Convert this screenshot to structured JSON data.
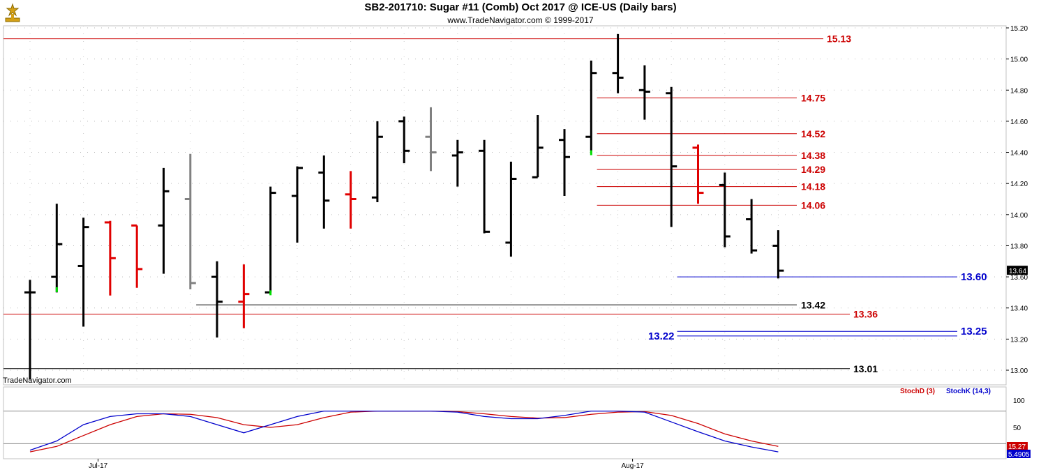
{
  "header": {
    "title": "SB2-201710:  Sugar #11 (Comb) Oct 2017 @ ICE-US  (Daily bars)",
    "subtitle": "www.TradeNavigator.com © 1999-2017"
  },
  "watermark": "TradeNavigator.com",
  "colors": {
    "up": "#000000",
    "down": "#e00000",
    "neutral": "#808080",
    "mark": "#00dd00",
    "level_red": "#cc0000",
    "level_black": "#000000",
    "level_blue": "#0000cc",
    "stochK": "#0000cc",
    "stochD": "#cc0000"
  },
  "chart_data": {
    "type": "ohlc",
    "price_axis": {
      "min": 12.95,
      "max": 15.25,
      "ticks": [
        "13.00",
        "13.20",
        "13.40",
        "13.60",
        "13.80",
        "14.00",
        "14.20",
        "14.40",
        "14.60",
        "14.80",
        "15.00",
        "15.20"
      ]
    },
    "last_price_label": "13.64",
    "date_labels": [
      {
        "index": 2,
        "label": "Jul-17"
      },
      {
        "index": 22,
        "label": "Aug-17"
      }
    ],
    "bars": [
      {
        "o": 13.5,
        "h": 13.58,
        "l": 12.94,
        "c": 13.5,
        "color": "up"
      },
      {
        "o": 13.6,
        "h": 14.07,
        "l": 13.5,
        "c": 13.81,
        "color": "up",
        "mark": 13.52
      },
      {
        "o": 13.67,
        "h": 13.98,
        "l": 13.28,
        "c": 13.92,
        "color": "up"
      },
      {
        "o": 13.95,
        "h": 13.96,
        "l": 13.48,
        "c": 13.72,
        "color": "down"
      },
      {
        "o": 13.93,
        "h": 13.93,
        "l": 13.53,
        "c": 13.65,
        "color": "down"
      },
      {
        "o": 13.93,
        "h": 14.3,
        "l": 13.62,
        "c": 14.15,
        "color": "up"
      },
      {
        "o": 14.1,
        "h": 14.39,
        "l": 13.52,
        "c": 13.56,
        "color": "neutral"
      },
      {
        "o": 13.6,
        "h": 13.7,
        "l": 13.21,
        "c": 13.44,
        "color": "up"
      },
      {
        "o": 13.44,
        "h": 13.68,
        "l": 13.27,
        "c": 13.49,
        "color": "down"
      },
      {
        "o": 13.5,
        "h": 14.18,
        "l": 13.5,
        "c": 14.14,
        "color": "up",
        "mark": 13.5
      },
      {
        "o": 14.12,
        "h": 14.31,
        "l": 13.82,
        "c": 14.3,
        "color": "up"
      },
      {
        "o": 14.27,
        "h": 14.38,
        "l": 13.91,
        "c": 14.09,
        "color": "up"
      },
      {
        "o": 14.13,
        "h": 14.28,
        "l": 13.91,
        "c": 14.1,
        "color": "down"
      },
      {
        "o": 14.11,
        "h": 14.6,
        "l": 14.08,
        "c": 14.5,
        "color": "up"
      },
      {
        "o": 14.6,
        "h": 14.63,
        "l": 14.33,
        "c": 14.41,
        "color": "up"
      },
      {
        "o": 14.5,
        "h": 14.69,
        "l": 14.28,
        "c": 14.4,
        "color": "neutral"
      },
      {
        "o": 14.38,
        "h": 14.48,
        "l": 14.18,
        "c": 14.4,
        "color": "up"
      },
      {
        "o": 14.41,
        "h": 14.48,
        "l": 13.88,
        "c": 13.89,
        "color": "up"
      },
      {
        "o": 13.82,
        "h": 14.34,
        "l": 13.73,
        "c": 14.23,
        "color": "up"
      },
      {
        "o": 14.24,
        "h": 14.64,
        "l": 14.24,
        "c": 14.43,
        "color": "up"
      },
      {
        "o": 14.48,
        "h": 14.55,
        "l": 14.12,
        "c": 14.37,
        "color": "up"
      },
      {
        "o": 14.5,
        "h": 14.99,
        "l": 14.41,
        "c": 14.91,
        "color": "up",
        "mark": 14.4
      },
      {
        "o": 14.91,
        "h": 15.16,
        "l": 14.78,
        "c": 14.88,
        "color": "up"
      },
      {
        "o": 14.8,
        "h": 14.96,
        "l": 14.61,
        "c": 14.79,
        "color": "up"
      },
      {
        "o": 14.78,
        "h": 14.82,
        "l": 13.92,
        "c": 14.31,
        "color": "up"
      },
      {
        "o": 14.43,
        "h": 14.45,
        "l": 14.07,
        "c": 14.14,
        "color": "down"
      },
      {
        "o": 14.19,
        "h": 14.27,
        "l": 13.79,
        "c": 13.86,
        "color": "up"
      },
      {
        "o": 13.97,
        "h": 14.1,
        "l": 13.75,
        "c": 13.77,
        "color": "up"
      },
      {
        "o": 13.8,
        "h": 13.9,
        "l": 13.59,
        "c": 13.64,
        "color": "up"
      }
    ],
    "levels": [
      {
        "label": "15.13",
        "value": 15.13,
        "color": "level_red",
        "from": 0,
        "label_at": "right"
      },
      {
        "label": "14.75",
        "value": 14.75,
        "color": "level_red",
        "from": 22,
        "label_at": "mid"
      },
      {
        "label": "14.52",
        "value": 14.52,
        "color": "level_red",
        "from": 22,
        "label_at": "mid"
      },
      {
        "label": "14.38",
        "value": 14.38,
        "color": "level_red",
        "from": 22,
        "label_at": "mid"
      },
      {
        "label": "14.29",
        "value": 14.29,
        "color": "level_red",
        "from": 22,
        "label_at": "mid"
      },
      {
        "label": "14.18",
        "value": 14.18,
        "color": "level_red",
        "from": 22,
        "label_at": "mid"
      },
      {
        "label": "14.06",
        "value": 14.06,
        "color": "level_red",
        "from": 22,
        "label_at": "mid"
      },
      {
        "label": "13.60",
        "value": 13.6,
        "color": "level_blue",
        "from": 25,
        "label_at": "right"
      },
      {
        "label": "13.42",
        "value": 13.42,
        "color": "level_black",
        "from": 7,
        "label_at": "mid"
      },
      {
        "label": "13.36",
        "value": 13.36,
        "color": "level_red",
        "from": 0,
        "label_at": "right"
      },
      {
        "label": "13.25",
        "value": 13.25,
        "color": "level_blue",
        "from": 25,
        "label_at": "right"
      },
      {
        "label": "13.22",
        "value": 13.22,
        "color": "level_blue",
        "from": 25,
        "label_at": "left"
      },
      {
        "label": "13.01",
        "value": 13.01,
        "color": "level_black",
        "from": 0,
        "label_at": "right"
      }
    ],
    "stochastic": {
      "axis_ticks": [
        "100",
        "50"
      ],
      "upper_line": 80,
      "lower_line": 20,
      "k_label": "StochK (14,3)",
      "d_label": "StochD (3)",
      "k_value_label": "5.4905",
      "d_value_label": "15.27",
      "K": [
        8,
        25,
        55,
        70,
        75,
        75,
        70,
        55,
        40,
        55,
        70,
        80,
        80,
        80,
        80,
        80,
        78,
        70,
        66,
        66,
        72,
        80,
        80,
        78,
        60,
        42,
        25,
        14,
        5
      ],
      "D": [
        5,
        15,
        35,
        55,
        70,
        75,
        74,
        68,
        55,
        50,
        55,
        68,
        78,
        80,
        80,
        80,
        79,
        75,
        70,
        67,
        68,
        74,
        78,
        79,
        72,
        57,
        38,
        25,
        15
      ]
    }
  }
}
